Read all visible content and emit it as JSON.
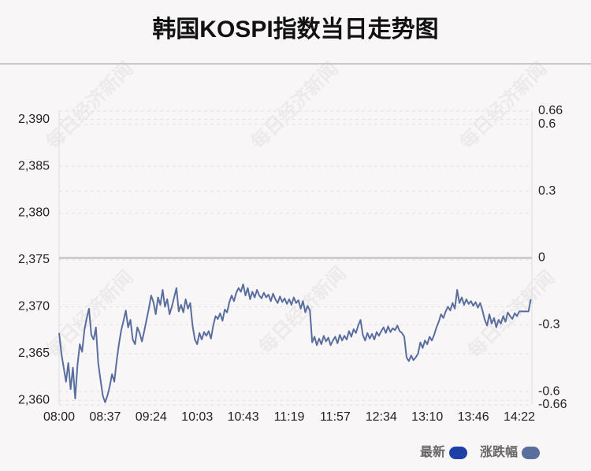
{
  "chart_data": {
    "type": "line",
    "title": "韩国KOSPI指数当日走势图",
    "watermark": "每日经济新闻",
    "categories": [
      "08:00",
      null,
      null,
      null,
      null,
      null,
      null,
      null,
      null,
      null,
      null,
      null,
      null,
      null,
      null,
      null,
      null,
      null,
      null,
      null,
      "08:37",
      null,
      null,
      null,
      null,
      null,
      null,
      null,
      null,
      null,
      null,
      null,
      null,
      null,
      null,
      null,
      null,
      null,
      null,
      null,
      "09:24",
      null,
      null,
      null,
      null,
      null,
      null,
      null,
      null,
      null,
      null,
      null,
      null,
      null,
      null,
      null,
      null,
      null,
      null,
      null,
      "10:03",
      null,
      null,
      null,
      null,
      null,
      null,
      null,
      null,
      null,
      null,
      null,
      null,
      null,
      null,
      null,
      null,
      null,
      null,
      null,
      "10:43",
      null,
      null,
      null,
      null,
      null,
      null,
      null,
      null,
      null,
      null,
      null,
      null,
      null,
      null,
      null,
      null,
      null,
      null,
      null,
      "11:19",
      null,
      null,
      null,
      null,
      null,
      null,
      null,
      null,
      null,
      null,
      null,
      null,
      null,
      null,
      null,
      null,
      null,
      null,
      null,
      "11:57",
      null,
      null,
      null,
      null,
      null,
      null,
      null,
      null,
      null,
      null,
      null,
      null,
      null,
      null,
      null,
      null,
      null,
      null,
      null,
      "12:34",
      null,
      null,
      null,
      null,
      null,
      null,
      null,
      null,
      null,
      null,
      null,
      null,
      null,
      null,
      null,
      null,
      null,
      null,
      null,
      "13:10",
      null,
      null,
      null,
      null,
      null,
      null,
      null,
      null,
      null,
      null,
      null,
      null,
      null,
      null,
      null,
      null,
      null,
      null,
      null,
      "13:46",
      null,
      null,
      null,
      null,
      null,
      null,
      null,
      null,
      null,
      null,
      null,
      null,
      null,
      null,
      null,
      null,
      null,
      null,
      null,
      "14:22",
      null,
      null,
      null,
      null,
      null
    ],
    "series": [
      {
        "name": "最新",
        "color": "#5a6e9e",
        "values": [
          2367.2,
          2365.0,
          2363.5,
          2362.0,
          2364.0,
          2361.2,
          2363.5,
          2360.2,
          2363.8,
          2366.0,
          2365.2,
          2367.5,
          2368.8,
          2369.8,
          2367.0,
          2366.5,
          2367.8,
          2364.0,
          2362.2,
          2360.5,
          2359.8,
          2360.5,
          2361.5,
          2362.8,
          2362.0,
          2364.2,
          2366.0,
          2367.5,
          2368.5,
          2369.6,
          2367.8,
          2368.6,
          2366.5,
          2366.0,
          2367.8,
          2367.2,
          2366.3,
          2367.4,
          2368.6,
          2369.8,
          2371.2,
          2370.5,
          2369.2,
          2371.0,
          2370.2,
          2371.8,
          2370.0,
          2370.8,
          2369.2,
          2370.0,
          2371.0,
          2372.0,
          2369.5,
          2370.2,
          2369.4,
          2370.8,
          2369.8,
          2370.4,
          2368.0,
          2366.5,
          2366.0,
          2367.2,
          2366.5,
          2367.3,
          2366.9,
          2367.4,
          2366.6,
          2368.0,
          2369.0,
          2368.7,
          2369.3,
          2368.5,
          2369.7,
          2369.4,
          2370.5,
          2371.2,
          2370.6,
          2371.5,
          2372.0,
          2371.6,
          2372.4,
          2371.2,
          2372.0,
          2370.8,
          2371.6,
          2371.0,
          2371.8,
          2371.2,
          2370.9,
          2371.5,
          2371.0,
          2371.3,
          2370.6,
          2371.4,
          2370.8,
          2370.4,
          2371.1,
          2370.5,
          2370.9,
          2370.3,
          2370.8,
          2370.2,
          2371.0,
          2370.4,
          2370.7,
          2369.8,
          2370.6,
          2369.4,
          2370.1,
          2369.6,
          2366.2,
          2366.8,
          2365.9,
          2366.6,
          2366.0,
          2366.9,
          2366.3,
          2366.7,
          2365.9,
          2366.4,
          2366.8,
          2366.1,
          2367.0,
          2366.4,
          2366.9,
          2366.5,
          2367.4,
          2366.8,
          2367.6,
          2367.2,
          2368.0,
          2368.6,
          2367.0,
          2366.4,
          2367.2,
          2366.6,
          2367.1,
          2366.5,
          2367.3,
          2366.9,
          2367.4,
          2367.8,
          2367.2,
          2367.9,
          2367.3,
          2367.7,
          2367.5,
          2368.0,
          2367.4,
          2367.2,
          2366.8,
          2364.6,
          2364.2,
          2364.8,
          2364.3,
          2364.6,
          2365.0,
          2366.2,
          2365.6,
          2366.4,
          2366.0,
          2366.8,
          2366.4,
          2367.0,
          2367.8,
          2368.4,
          2369.2,
          2368.8,
          2369.5,
          2370.0,
          2369.6,
          2370.4,
          2369.8,
          2371.8,
          2370.4,
          2371.0,
          2370.2,
          2370.8,
          2370.3,
          2370.6,
          2370.1,
          2370.5,
          2369.9,
          2370.4,
          2369.6,
          2368.6,
          2368.0,
          2369.2,
          2368.2,
          2368.8,
          2367.8,
          2368.6,
          2368.2,
          2369.0,
          2368.4,
          2369.4,
          2369.0,
          2368.7,
          2369.3,
          2369.0,
          2369.5,
          2369.5,
          2369.5,
          2369.5,
          2369.5,
          2370.8
        ]
      }
    ],
    "legend": [
      {
        "name": "最新",
        "color": "#1c3fa8"
      },
      {
        "name": "涨跌幅",
        "color": "#5b6f9d"
      }
    ],
    "ylim": [
      2359.53,
      2390.89
    ],
    "yticks": [
      {
        "value": 2360,
        "label": "2,360"
      },
      {
        "value": 2365,
        "label": "2,365"
      },
      {
        "value": 2370,
        "label": "2,370"
      },
      {
        "value": 2375,
        "label": "2,375"
      },
      {
        "value": 2380,
        "label": "2,380"
      },
      {
        "value": 2385,
        "label": "2,385"
      },
      {
        "value": 2390,
        "label": "2,390"
      }
    ],
    "y2lim": [
      -0.66,
      0.66
    ],
    "y2ticks": [
      -0.66,
      -0.6,
      -0.3,
      0,
      0.3,
      0.6,
      0.66
    ],
    "grid": true
  }
}
